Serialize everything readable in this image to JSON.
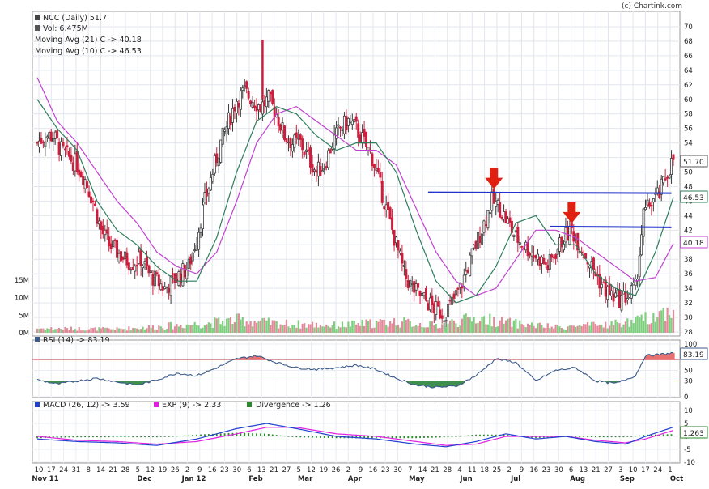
{
  "header": {
    "credit": "(c) Chartink.com"
  },
  "colors": {
    "up": "#3a3a3a",
    "down": "#cc1f3d",
    "ma21": "#c040d0",
    "ma10": "#2e7d5a",
    "trendline": "#2233cc",
    "arrow": "#e02010",
    "volume_up": "#7fce7f",
    "volume_down": "#e28a9a",
    "rsi": "#3a5a8a",
    "rsi_fill_high": "#e87070",
    "rsi_fill_low": "#3f8f4f",
    "macd": "#2040d0",
    "signal": "#e020e0",
    "divergence": "#2a8a2a"
  },
  "legend": {
    "symbol": "NCC (Daily) 51.7",
    "volume": "Vol: 6.475M",
    "ma21": "Moving Avg (21) C -> 40.18",
    "ma10": "Moving Avg (10) C -> 46.53"
  },
  "rsi_panel": {
    "label": "RSI (14) -> 83.19",
    "value_tag": "83.19",
    "ticks": [
      "100",
      "70",
      "50",
      "30",
      "0"
    ]
  },
  "macd_panel": {
    "macd_label": "MACD (26, 12) -> 3.59",
    "exp_label": "EXP (9) -> 2.33",
    "div_label": "Divergence -> 1.26",
    "value_tag": "1.263",
    "ticks": [
      "10",
      "5",
      "0",
      "-5",
      "-10"
    ]
  },
  "price_tags": {
    "last": "51.70",
    "ma10": "46.53",
    "ma21": "40.18"
  },
  "chart_data": {
    "type": "candlestick",
    "title": "NCC (Daily) 51.7",
    "price_axis": {
      "ylim": [
        28,
        72
      ],
      "ticks": [
        "70",
        "68",
        "66",
        "64",
        "62",
        "60",
        "58",
        "56",
        "54",
        "52",
        "50",
        "48",
        "46",
        "44",
        "42",
        "40",
        "38",
        "36",
        "34",
        "32",
        "30",
        "28"
      ]
    },
    "volume_axis": {
      "ticks": [
        "15M",
        "10M",
        "5M",
        "0M"
      ]
    },
    "x_axis": {
      "day_ticks": [
        "10",
        "17",
        "24",
        "31",
        "8",
        "14",
        "21",
        "28",
        "5",
        "12",
        "19",
        "26",
        "2",
        "9",
        "16",
        "23",
        "30",
        "6",
        "13",
        "21",
        "27",
        "5",
        "12",
        "19",
        "26",
        "2",
        "9",
        "16",
        "23",
        "30",
        "7",
        "14",
        "21",
        "28",
        "4",
        "11",
        "18",
        "25",
        "2",
        "9",
        "16",
        "23",
        "30",
        "6",
        "13",
        "21",
        "27",
        "3",
        "10",
        "17",
        "24",
        "1"
      ],
      "months": [
        "Nov 11",
        "Dec",
        "Jan 12",
        "Feb",
        "Mar",
        "Apr",
        "May",
        "Jun",
        "Jul",
        "Aug",
        "Sep",
        "Oct"
      ]
    },
    "price_keypoints": [
      [
        0,
        54
      ],
      [
        4,
        55
      ],
      [
        8,
        55
      ],
      [
        12,
        53
      ],
      [
        16,
        52
      ],
      [
        20,
        51
      ],
      [
        24,
        49
      ],
      [
        28,
        46
      ],
      [
        32,
        42
      ],
      [
        36,
        40
      ],
      [
        40,
        39
      ],
      [
        44,
        38
      ],
      [
        48,
        37.5
      ],
      [
        52,
        38
      ],
      [
        56,
        36
      ],
      [
        60,
        35
      ],
      [
        64,
        34
      ],
      [
        68,
        35
      ],
      [
        72,
        36
      ],
      [
        76,
        37
      ],
      [
        80,
        41
      ],
      [
        84,
        46
      ],
      [
        88,
        50
      ],
      [
        92,
        54
      ],
      [
        96,
        57
      ],
      [
        100,
        60
      ],
      [
        104,
        61
      ],
      [
        108,
        60
      ],
      [
        112,
        59
      ],
      [
        116,
        60
      ],
      [
        120,
        58
      ],
      [
        124,
        55
      ],
      [
        128,
        54
      ],
      [
        132,
        54
      ],
      [
        136,
        52
      ],
      [
        140,
        50
      ],
      [
        144,
        51
      ],
      [
        148,
        54
      ],
      [
        152,
        56
      ],
      [
        156,
        57
      ],
      [
        160,
        56
      ],
      [
        164,
        54
      ],
      [
        168,
        52
      ],
      [
        172,
        48
      ],
      [
        176,
        44
      ],
      [
        180,
        40
      ],
      [
        184,
        36
      ],
      [
        188,
        34
      ],
      [
        192,
        33
      ],
      [
        196,
        32
      ],
      [
        200,
        31
      ],
      [
        204,
        30.5
      ],
      [
        208,
        32
      ],
      [
        212,
        34
      ],
      [
        216,
        37
      ],
      [
        220,
        40
      ],
      [
        224,
        43
      ],
      [
        228,
        46
      ],
      [
        232,
        45
      ],
      [
        236,
        43
      ],
      [
        240,
        41
      ],
      [
        244,
        40
      ],
      [
        248,
        39
      ],
      [
        252,
        38
      ],
      [
        256,
        37
      ],
      [
        260,
        39
      ],
      [
        264,
        41
      ],
      [
        268,
        42
      ],
      [
        272,
        40
      ],
      [
        276,
        38
      ],
      [
        280,
        36
      ],
      [
        284,
        34
      ],
      [
        288,
        33
      ],
      [
        292,
        32.5
      ],
      [
        296,
        33
      ],
      [
        300,
        34
      ],
      [
        304,
        44
      ],
      [
        308,
        46
      ],
      [
        312,
        47
      ],
      [
        316,
        50
      ],
      [
        319,
        51.7
      ]
    ],
    "volume_keypoints": [
      [
        0,
        1.2
      ],
      [
        40,
        1.0
      ],
      [
        84,
        2.5
      ],
      [
        100,
        3.5
      ],
      [
        120,
        2.5
      ],
      [
        150,
        2.0
      ],
      [
        180,
        3.0
      ],
      [
        200,
        2.0
      ],
      [
        220,
        4.0
      ],
      [
        240,
        2.5
      ],
      [
        260,
        1.5
      ],
      [
        280,
        2.0
      ],
      [
        300,
        3.0
      ],
      [
        319,
        6.475
      ]
    ],
    "ma21_keypoints": [
      [
        0,
        63
      ],
      [
        10,
        57
      ],
      [
        20,
        54
      ],
      [
        30,
        50
      ],
      [
        40,
        46
      ],
      [
        50,
        43
      ],
      [
        60,
        39
      ],
      [
        70,
        37
      ],
      [
        80,
        36
      ],
      [
        90,
        39
      ],
      [
        100,
        46
      ],
      [
        110,
        54
      ],
      [
        120,
        58
      ],
      [
        130,
        59
      ],
      [
        140,
        57
      ],
      [
        150,
        55
      ],
      [
        160,
        53
      ],
      [
        170,
        53
      ],
      [
        180,
        51
      ],
      [
        190,
        45
      ],
      [
        200,
        39
      ],
      [
        210,
        35
      ],
      [
        220,
        33
      ],
      [
        230,
        34
      ],
      [
        240,
        38
      ],
      [
        250,
        42
      ],
      [
        260,
        42
      ],
      [
        270,
        41
      ],
      [
        280,
        39
      ],
      [
        290,
        37
      ],
      [
        300,
        35
      ],
      [
        310,
        35.5
      ],
      [
        319,
        40.18
      ]
    ],
    "ma10_keypoints": [
      [
        0,
        60
      ],
      [
        10,
        56
      ],
      [
        20,
        53
      ],
      [
        30,
        46
      ],
      [
        40,
        42
      ],
      [
        50,
        40
      ],
      [
        60,
        37
      ],
      [
        70,
        35
      ],
      [
        80,
        35
      ],
      [
        90,
        41
      ],
      [
        100,
        50
      ],
      [
        110,
        57
      ],
      [
        120,
        59
      ],
      [
        130,
        58
      ],
      [
        140,
        55
      ],
      [
        150,
        53
      ],
      [
        160,
        54
      ],
      [
        170,
        54
      ],
      [
        180,
        50
      ],
      [
        190,
        42
      ],
      [
        200,
        35
      ],
      [
        210,
        32
      ],
      [
        220,
        33
      ],
      [
        230,
        37
      ],
      [
        240,
        43
      ],
      [
        250,
        44
      ],
      [
        260,
        40
      ],
      [
        270,
        40
      ],
      [
        280,
        36
      ],
      [
        290,
        34
      ],
      [
        300,
        33
      ],
      [
        310,
        39
      ],
      [
        319,
        46.53
      ]
    ],
    "horizontal_levels": [
      {
        "price": 47.2,
        "from_index": 196,
        "to_index": 318
      },
      {
        "price": 42.5,
        "from_index": 257,
        "to_index": 318
      }
    ],
    "arrows": [
      {
        "index": 229,
        "price": 47.2
      },
      {
        "index": 268,
        "price": 42.5
      }
    ],
    "rsi": {
      "last": 83.19,
      "keypoints": [
        [
          0,
          32
        ],
        [
          10,
          24
        ],
        [
          20,
          30
        ],
        [
          30,
          35
        ],
        [
          40,
          28
        ],
        [
          50,
          22
        ],
        [
          60,
          32
        ],
        [
          70,
          45
        ],
        [
          80,
          40
        ],
        [
          90,
          55
        ],
        [
          100,
          72
        ],
        [
          110,
          78
        ],
        [
          120,
          65
        ],
        [
          130,
          55
        ],
        [
          140,
          52
        ],
        [
          150,
          55
        ],
        [
          160,
          60
        ],
        [
          170,
          52
        ],
        [
          180,
          35
        ],
        [
          190,
          22
        ],
        [
          200,
          18
        ],
        [
          210,
          20
        ],
        [
          220,
          40
        ],
        [
          230,
          72
        ],
        [
          240,
          65
        ],
        [
          250,
          30
        ],
        [
          260,
          50
        ],
        [
          270,
          55
        ],
        [
          280,
          30
        ],
        [
          290,
          25
        ],
        [
          300,
          40
        ],
        [
          305,
          78
        ],
        [
          312,
          80
        ],
        [
          319,
          83.19
        ]
      ]
    },
    "macd": {
      "macd_last": 3.59,
      "signal_last": 2.33,
      "divergence_last": 1.26,
      "macd_keypoints": [
        [
          0,
          -1
        ],
        [
          20,
          -2
        ],
        [
          40,
          -2.5
        ],
        [
          60,
          -3.5
        ],
        [
          80,
          -1
        ],
        [
          100,
          3
        ],
        [
          115,
          5
        ],
        [
          130,
          3
        ],
        [
          150,
          0
        ],
        [
          170,
          -1
        ],
        [
          190,
          -3
        ],
        [
          205,
          -4
        ],
        [
          220,
          -2
        ],
        [
          235,
          1
        ],
        [
          250,
          -1
        ],
        [
          265,
          0
        ],
        [
          280,
          -2
        ],
        [
          295,
          -3
        ],
        [
          305,
          0
        ],
        [
          319,
          3.59
        ]
      ],
      "signal_keypoints": [
        [
          0,
          0
        ],
        [
          20,
          -1.5
        ],
        [
          40,
          -2
        ],
        [
          60,
          -3
        ],
        [
          80,
          -2
        ],
        [
          100,
          1
        ],
        [
          115,
          3.5
        ],
        [
          130,
          3.5
        ],
        [
          150,
          1
        ],
        [
          170,
          0
        ],
        [
          190,
          -2
        ],
        [
          205,
          -3.5
        ],
        [
          220,
          -3
        ],
        [
          235,
          0
        ],
        [
          250,
          0
        ],
        [
          265,
          0
        ],
        [
          280,
          -1.5
        ],
        [
          295,
          -2.5
        ],
        [
          305,
          -1
        ],
        [
          319,
          2.33
        ]
      ]
    }
  }
}
